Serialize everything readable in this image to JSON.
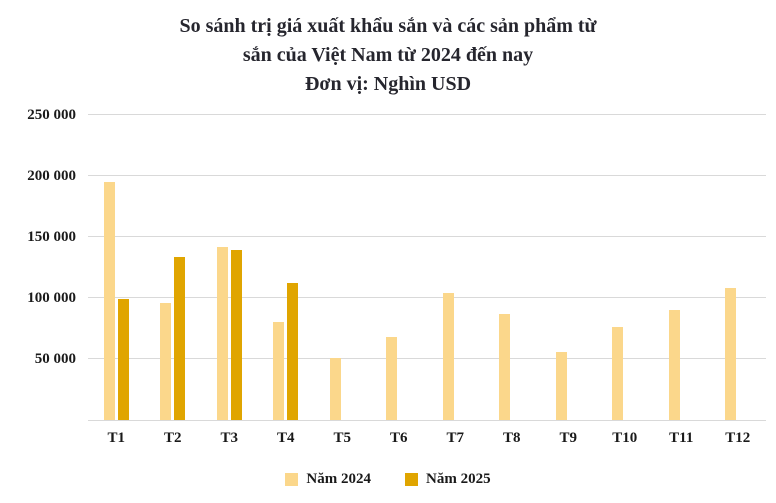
{
  "title": {
    "line1": "So sánh trị giá xuất khẩu sắn và các sản phẩm từ",
    "line2": "sắn của Việt Nam từ 2024 đến nay",
    "line3": "Đơn vị: Nghìn USD"
  },
  "colors": {
    "series_2024": "#FBD78B",
    "series_2025": "#E0A500",
    "grid": "#d9d9d9",
    "text": "#1a1a1a",
    "title_text": "#26262e"
  },
  "chart_data": {
    "type": "bar",
    "title": "So sánh trị giá xuất khẩu sắn và các sản phẩm từ sắn của Việt Nam từ 2024 đến nay",
    "subtitle": "Đơn vị: Nghìn USD",
    "categories": [
      "T1",
      "T2",
      "T3",
      "T4",
      "T5",
      "T6",
      "T7",
      "T8",
      "T9",
      "T10",
      "T11",
      "T12"
    ],
    "series": [
      {
        "name": "Năm 2024",
        "color": "#FBD78B",
        "values": [
          195000,
          96000,
          142000,
          80000,
          51000,
          68000,
          104000,
          87000,
          56000,
          76000,
          90000,
          108000
        ]
      },
      {
        "name": "Năm 2025",
        "color": "#E0A500",
        "values": [
          99000,
          134000,
          139000,
          112000,
          null,
          null,
          null,
          null,
          null,
          null,
          null,
          null
        ]
      }
    ],
    "xlabel": "",
    "ylabel": "",
    "ylim": [
      0,
      250000
    ],
    "yticks": [
      250000,
      200000,
      150000,
      100000,
      50000
    ],
    "ytick_labels": [
      "250 000",
      "200 000",
      "150 000",
      "100 000",
      "50 000"
    ],
    "grid": true,
    "legend_position": "bottom"
  }
}
